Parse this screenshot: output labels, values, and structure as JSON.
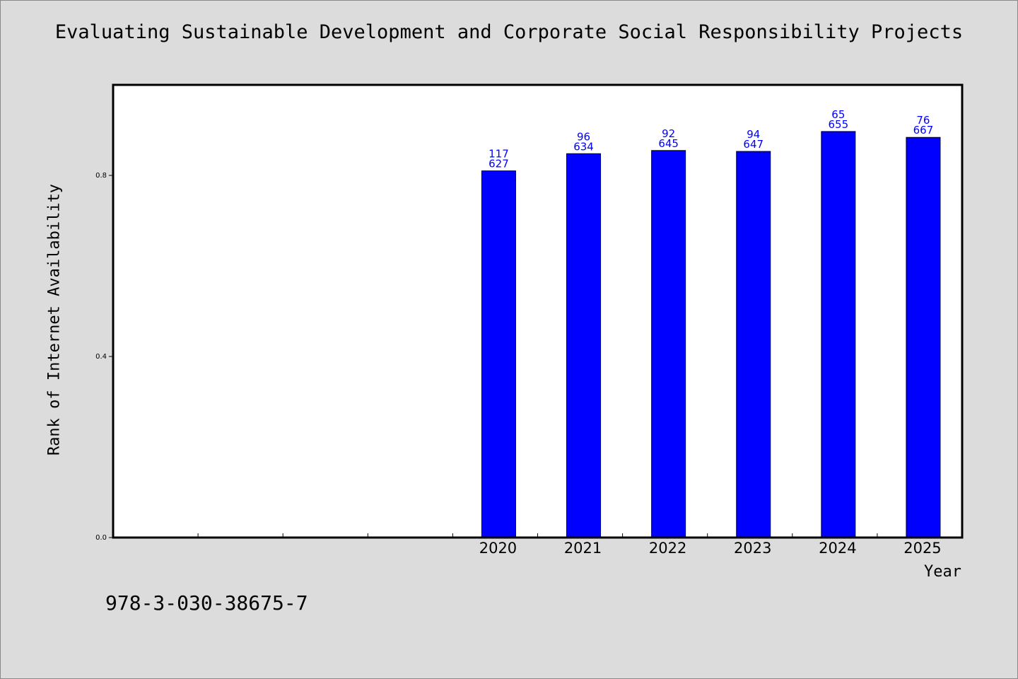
{
  "title": "Evaluating Sustainable Development and Corporate Social Responsibility Projects",
  "footer_text": "978-3-030-38675-7",
  "colors": {
    "background": "#dcdcdc",
    "plot_background": "#ffffff",
    "bar": "#0000ff",
    "bar_label": "#0000ff"
  },
  "chart_data": {
    "type": "bar",
    "title": "Evaluating Sustainable Development and Corporate Social Responsibility Projects",
    "xlabel": "Year",
    "ylabel": "Rank of Internet Availability",
    "categories": [
      "",
      "",
      "",
      "",
      "2020",
      "2021",
      "2022",
      "2023",
      "2024",
      "2025"
    ],
    "values": [
      null,
      null,
      null,
      null,
      0.81,
      0.848,
      0.855,
      0.853,
      0.897,
      0.884
    ],
    "bar_labels": [
      null,
      null,
      null,
      null,
      [
        "117",
        "627"
      ],
      [
        "96",
        "634"
      ],
      [
        "92",
        "645"
      ],
      [
        "94",
        "647"
      ],
      [
        "65",
        "655"
      ],
      [
        "76",
        "667"
      ]
    ],
    "yticks": [
      0.0,
      0.4,
      0.8
    ],
    "ytick_labels": [
      "0.0",
      "0.4",
      "0.8"
    ],
    "ylim": [
      0,
      1.0
    ],
    "grid": false,
    "legend": "none"
  }
}
